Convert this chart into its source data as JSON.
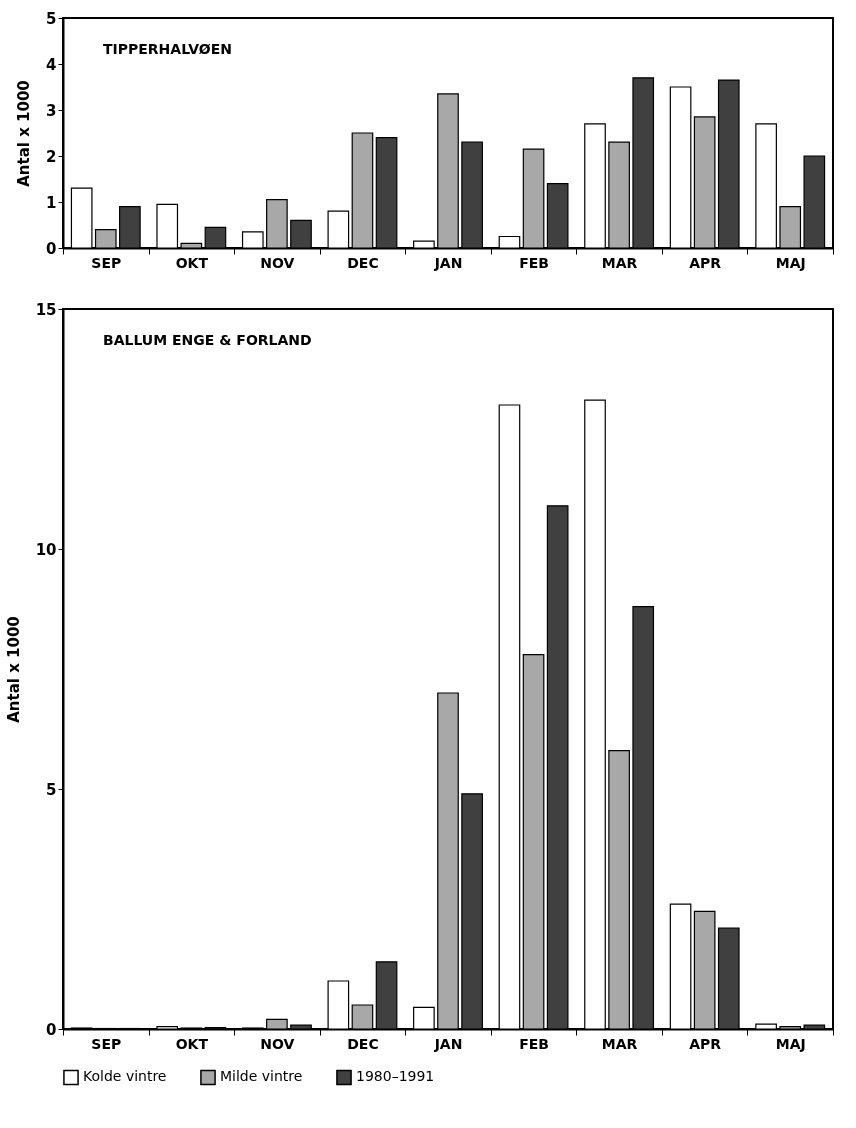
{
  "chart_data": [
    {
      "type": "bar",
      "title": "TIPPERHALVØEN",
      "ylabel": "Antal x 1000",
      "categories": [
        "SEP",
        "OKT",
        "NOV",
        "DEC",
        "JAN",
        "FEB",
        "MAR",
        "APR",
        "MAJ"
      ],
      "series": [
        {
          "color": "#ffffff",
          "values": [
            1.3,
            0.95,
            0.35,
            0.8,
            0.15,
            0.25,
            2.7,
            3.5,
            2.7
          ]
        },
        {
          "color": "#a8a8a8",
          "values": [
            0.4,
            0.1,
            1.05,
            2.5,
            3.35,
            2.15,
            2.3,
            2.85,
            0.9
          ]
        },
        {
          "color": "#404040",
          "values": [
            0.9,
            0.45,
            0.6,
            2.4,
            2.3,
            1.4,
            3.7,
            3.65,
            2.0
          ]
        }
      ],
      "ylim": [
        0,
        5
      ],
      "yticks": [
        0,
        1,
        2,
        3,
        4,
        5
      ],
      "grid": false,
      "legend": false
    },
    {
      "type": "bar",
      "title": "BALLUM ENGE & FORLAND",
      "ylabel": "Antal x 1000",
      "categories": [
        "SEP",
        "OKT",
        "NOV",
        "DEC",
        "JAN",
        "FEB",
        "MAR",
        "APR",
        "MAJ"
      ],
      "series": [
        {
          "name": "Kolde vintre",
          "color": "#ffffff",
          "values": [
            0.02,
            0.05,
            0.02,
            1.0,
            0.45,
            13.0,
            13.1,
            2.6,
            0.1
          ]
        },
        {
          "name": "Milde vintre",
          "color": "#a8a8a8",
          "values": [
            0.01,
            0.02,
            0.2,
            0.5,
            7.0,
            7.8,
            5.8,
            2.45,
            0.05
          ]
        },
        {
          "name": "1980–1991",
          "color": "#404040",
          "values": [
            0.01,
            0.03,
            0.08,
            1.4,
            4.9,
            10.9,
            8.8,
            2.1,
            0.08
          ]
        }
      ],
      "ylim": [
        0,
        15
      ],
      "yticks": [
        0,
        5,
        10,
        15
      ],
      "grid": false,
      "legend": "bottom"
    }
  ]
}
